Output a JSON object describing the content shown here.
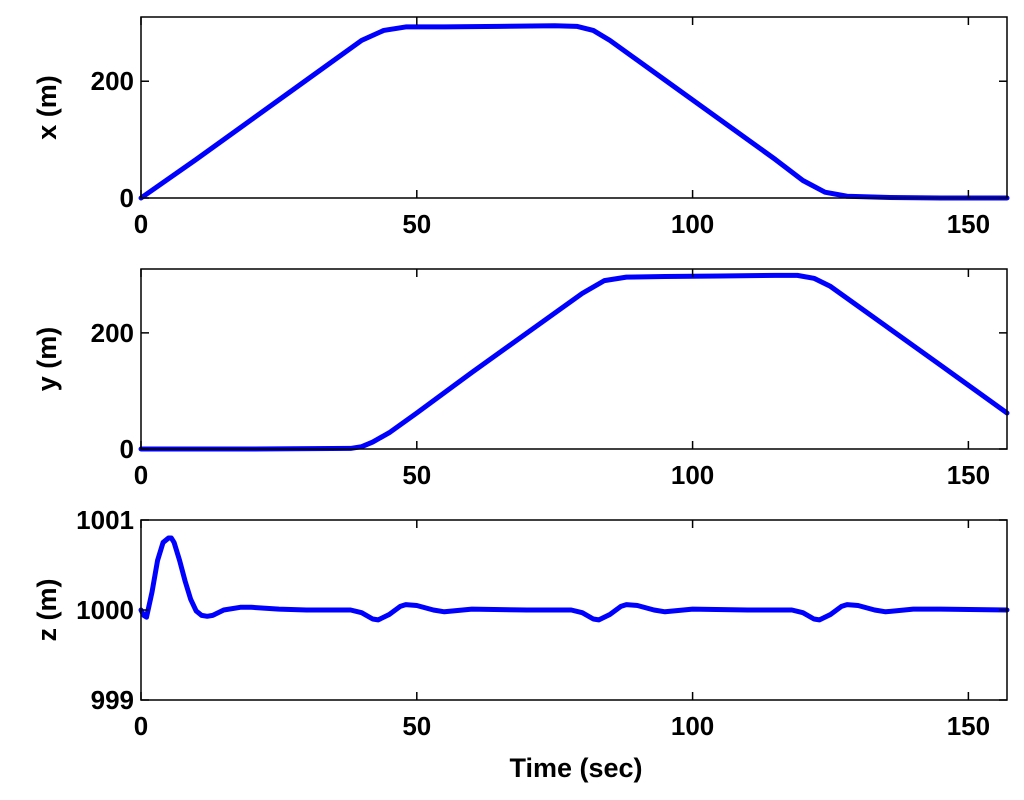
{
  "chart_data": [
    {
      "type": "line",
      "ylabel": "x (m)",
      "xlabel": "",
      "xlim": [
        0,
        157
      ],
      "ylim": [
        0,
        310
      ],
      "xticks": [
        0,
        50,
        100,
        150
      ],
      "yticks": [
        0,
        200
      ],
      "grid": false,
      "color": "#0000ff",
      "series": [
        {
          "x": [
            0,
            10,
            20,
            30,
            40,
            44,
            48,
            55,
            65,
            75,
            79,
            82,
            85,
            95,
            105,
            115,
            120,
            124,
            128,
            135,
            145,
            157
          ],
          "values": [
            0,
            66,
            134,
            202,
            270,
            287,
            293,
            293,
            294,
            295,
            294,
            287,
            270,
            202,
            134,
            66,
            30,
            10,
            3,
            1,
            0,
            0
          ]
        }
      ]
    },
    {
      "type": "line",
      "ylabel": "y (m)",
      "xlabel": "",
      "xlim": [
        0,
        157
      ],
      "ylim": [
        0,
        310
      ],
      "xticks": [
        0,
        50,
        100,
        150
      ],
      "yticks": [
        0,
        200
      ],
      "grid": false,
      "color": "#0000ff",
      "series": [
        {
          "x": [
            0,
            20,
            38,
            40,
            42,
            45,
            50,
            60,
            70,
            80,
            84,
            88,
            95,
            105,
            115,
            119,
            122,
            125,
            135,
            145,
            157
          ],
          "values": [
            0,
            0,
            1,
            4,
            12,
            28,
            62,
            132,
            200,
            268,
            290,
            296,
            297,
            298,
            299,
            299,
            294,
            280,
            212,
            144,
            62
          ]
        }
      ]
    },
    {
      "type": "line",
      "ylabel": "z (m)",
      "xlabel": "Time (sec)",
      "xlim": [
        0,
        157
      ],
      "ylim": [
        999,
        1001
      ],
      "xticks": [
        0,
        50,
        100,
        150
      ],
      "yticks": [
        999,
        1000,
        1001
      ],
      "grid": false,
      "color": "#0000ff",
      "series": [
        {
          "x": [
            0,
            0.5,
            1,
            2,
            3,
            4,
            5,
            5.5,
            6,
            7,
            8,
            9,
            10,
            11,
            12,
            13,
            15,
            18,
            20,
            25,
            30,
            38,
            40,
            42,
            43,
            45,
            47,
            48,
            50,
            53,
            55,
            60,
            70,
            78,
            80,
            82,
            83,
            85,
            87,
            88,
            90,
            93,
            95,
            100,
            110,
            118,
            120,
            122,
            123,
            125,
            127,
            128,
            130,
            133,
            135,
            140,
            145,
            157
          ],
          "values": [
            1000.0,
            999.94,
            999.92,
            1000.2,
            1000.55,
            1000.75,
            1000.8,
            1000.8,
            1000.75,
            1000.55,
            1000.32,
            1000.12,
            999.99,
            999.94,
            999.93,
            999.94,
            1000.0,
            1000.03,
            1000.03,
            1000.01,
            1000.0,
            1000.0,
            999.97,
            999.9,
            999.89,
            999.95,
            1000.04,
            1000.06,
            1000.05,
            1000.0,
            999.98,
            1000.01,
            1000.0,
            1000.0,
            999.97,
            999.9,
            999.89,
            999.95,
            1000.04,
            1000.06,
            1000.05,
            1000.0,
            999.98,
            1000.01,
            1000.0,
            1000.0,
            999.97,
            999.9,
            999.89,
            999.95,
            1000.04,
            1000.06,
            1000.05,
            1000.0,
            999.98,
            1000.01,
            1000.01,
            1000.0
          ]
        }
      ]
    }
  ]
}
